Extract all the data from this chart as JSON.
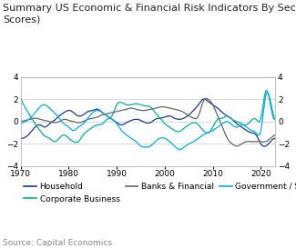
{
  "title": "Summary US Economic & Financial Risk Indicators By Sector (Z\nScores)",
  "source": "Source: Capital Economics",
  "xlim": [
    1970,
    2023
  ],
  "ylim": [
    -4,
    4
  ],
  "yticks": [
    -4,
    -2,
    0,
    2,
    4
  ],
  "xticks": [
    1970,
    1980,
    1990,
    2000,
    2010,
    2020
  ],
  "legend": [
    {
      "label": "Household",
      "color": "#1a3a8c",
      "linestyle": "-"
    },
    {
      "label": "Corporate Business",
      "color": "#00b39b",
      "linestyle": "-"
    },
    {
      "label": "Banks & Financial",
      "color": "#666666",
      "linestyle": "-"
    },
    {
      "label": "Government / Sovereign",
      "color": "#00aeef",
      "linestyle": "-"
    }
  ],
  "background_color": "#ffffff",
  "title_fontsize": 8.0,
  "axis_fontsize": 6.5,
  "legend_fontsize": 6.5,
  "source_fontsize": 6.5
}
